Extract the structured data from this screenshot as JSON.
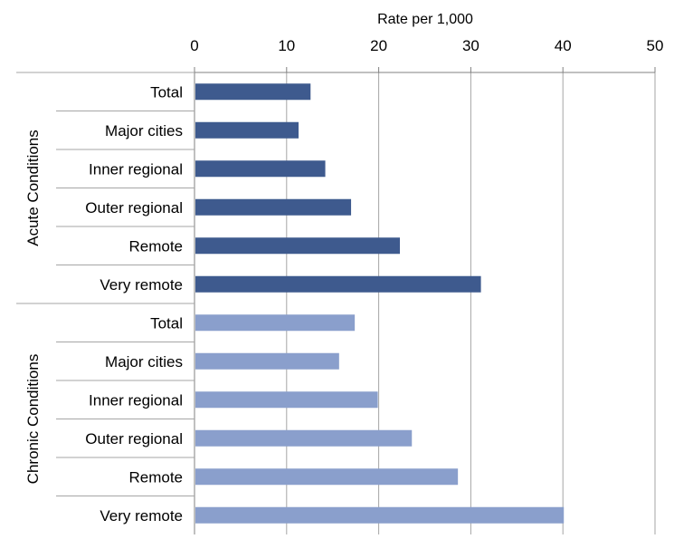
{
  "chart_data": {
    "type": "bar",
    "orientation": "horizontal",
    "title": "",
    "xlabel": "Rate per 1,000",
    "ylabel": "",
    "xlim": [
      0,
      50
    ],
    "x_ticks": [
      0,
      10,
      20,
      30,
      40,
      50
    ],
    "x_axis_position": "top",
    "grid": true,
    "legend": "none",
    "groups": [
      {
        "name": "Acute Conditions",
        "color": "#3e5a8e",
        "categories": [
          "Total",
          "Major cities",
          "Inner regional",
          "Outer regional",
          "Remote",
          "Very remote"
        ],
        "values": [
          12.6,
          11.3,
          14.2,
          17.0,
          22.3,
          31.1
        ]
      },
      {
        "name": "Chronic Conditions",
        "color": "#8a9fcc",
        "categories": [
          "Total",
          "Major cities",
          "Inner regional",
          "Outer regional",
          "Remote",
          "Very remote"
        ],
        "values": [
          17.4,
          15.7,
          19.9,
          23.6,
          28.6,
          40.1
        ]
      }
    ]
  }
}
